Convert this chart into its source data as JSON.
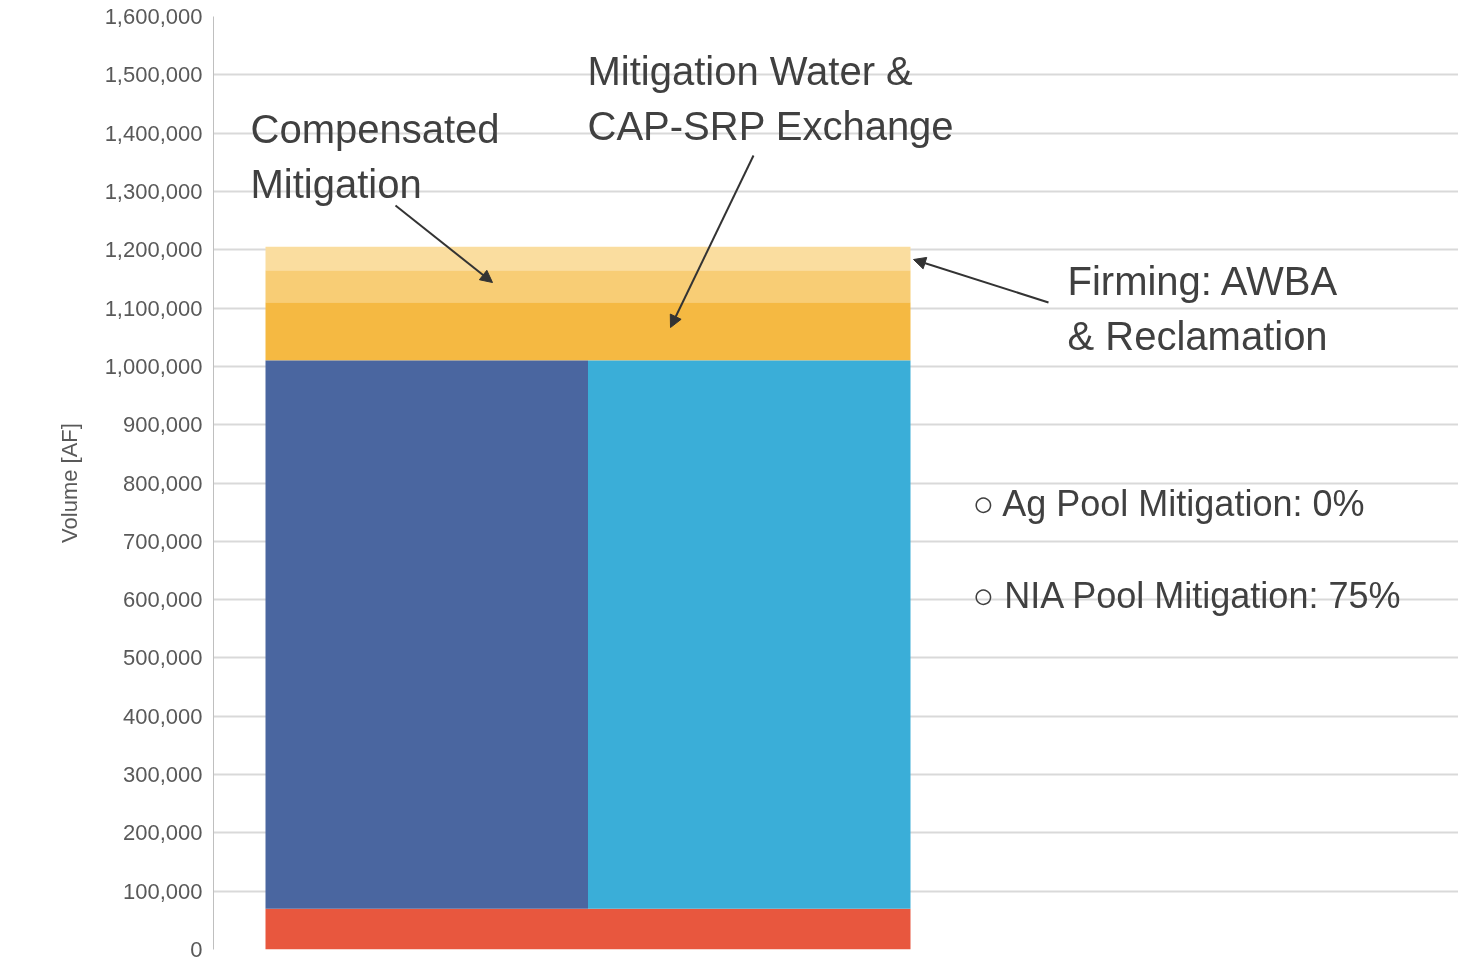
{
  "chart_data": {
    "type": "bar",
    "ylabel": "Volume [AF]",
    "categories": [
      null,
      null
    ],
    "values": [
      940000,
      940000
    ],
    "base": [
      70000,
      70000
    ],
    "colors": [
      "#4a66a0",
      "#3aaed8"
    ],
    "bands": [
      {
        "axis": "y",
        "from": 0,
        "to": 70000,
        "color": "#e8573e"
      },
      {
        "axis": "y",
        "from": 1010000,
        "to": 1110000,
        "color": "#f5b942"
      },
      {
        "axis": "y",
        "from": 1110000,
        "to": 1165000,
        "color": "#f8cd75"
      },
      {
        "axis": "y",
        "from": 1165000,
        "to": 1205000,
        "color": "#fadd9f"
      }
    ],
    "ylim": [
      0,
      1600000
    ],
    "yticks": [
      {
        "value": 0,
        "label": "0"
      },
      {
        "value": 100000,
        "label": "100,000"
      },
      {
        "value": 200000,
        "label": "200,000"
      },
      {
        "value": 300000,
        "label": "300,000"
      },
      {
        "value": 400000,
        "label": "400,000"
      },
      {
        "value": 500000,
        "label": "500,000"
      },
      {
        "value": 600000,
        "label": "600,000"
      },
      {
        "value": 700000,
        "label": "700,000"
      },
      {
        "value": 800000,
        "label": "800,000"
      },
      {
        "value": 900000,
        "label": "900,000"
      },
      {
        "value": 1000000,
        "label": "1,000,000"
      },
      {
        "value": 1100000,
        "label": "1,100,000"
      },
      {
        "value": 1200000,
        "label": "1,200,000"
      },
      {
        "value": 1300000,
        "label": "1,300,000"
      },
      {
        "value": 1400000,
        "label": "1,400,000"
      },
      {
        "value": 1500000,
        "label": "1,500,000"
      },
      {
        "value": 1600000,
        "label": "1,600,000"
      }
    ],
    "grid": "y",
    "tick_labels": "y",
    "annotations": [
      "Compensated\nMitigation",
      "Mitigation Water &\nCAP-SRP Exchange",
      "Firming: AWBA\n& Reclamation",
      "○ Ag Pool Mitigation: 0%",
      "○ NIA Pool Mitigation: 75%"
    ]
  }
}
